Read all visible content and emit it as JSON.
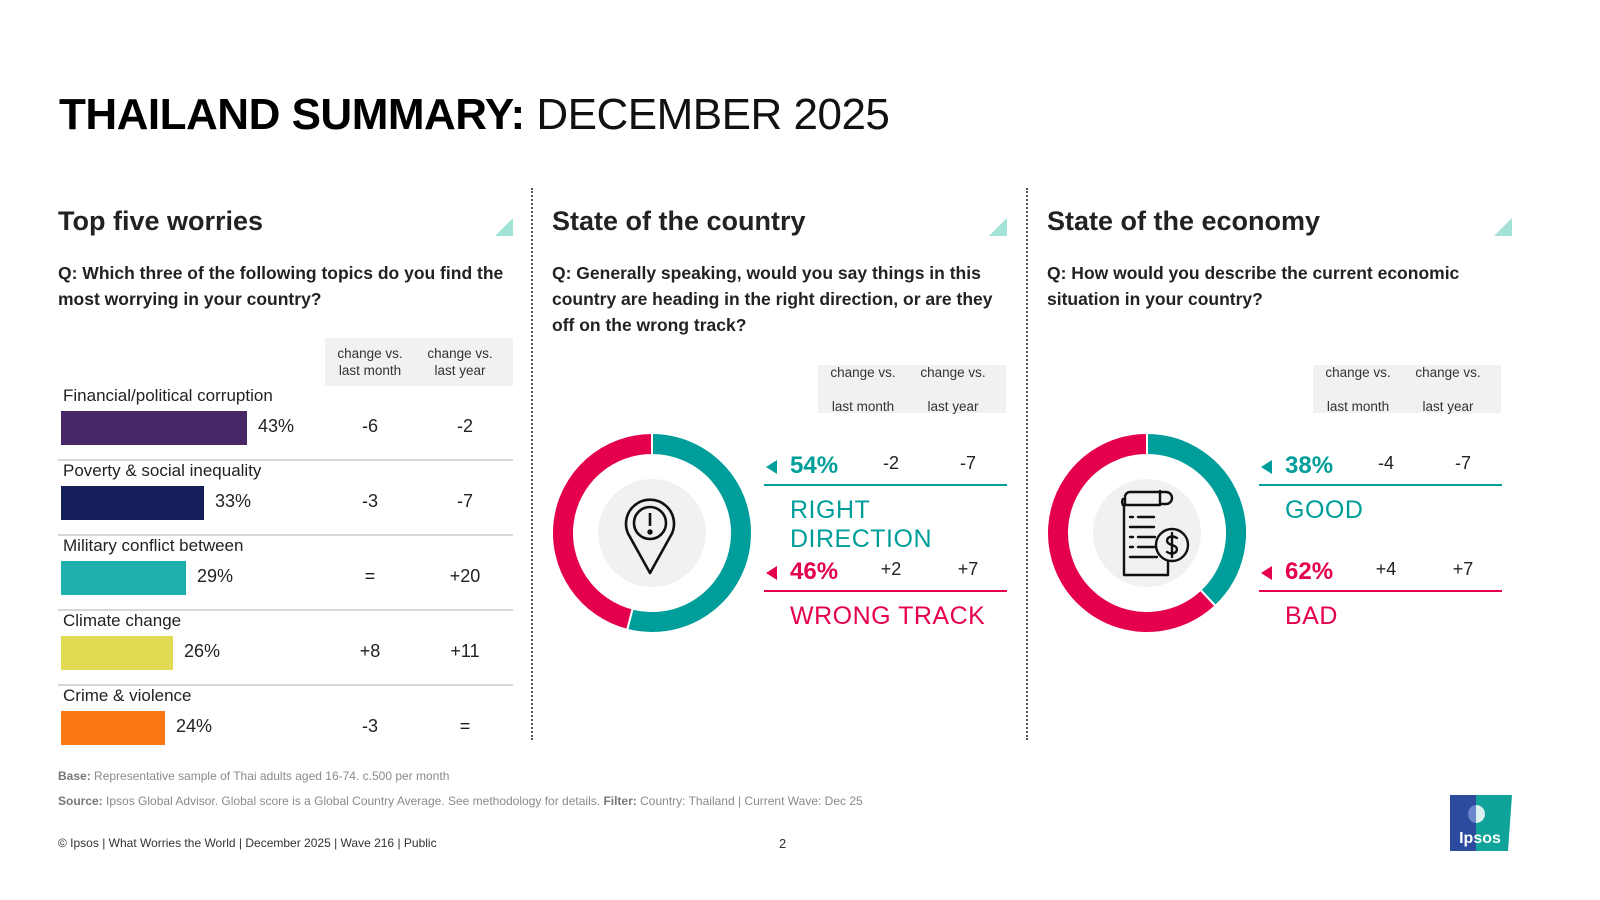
{
  "title": {
    "bold": "THAILAND SUMMARY:",
    "light": "DECEMBER 2025"
  },
  "colors": {
    "teal": "#009e9a",
    "magenta": "#e4004f",
    "tri": "#a2e3d6",
    "header_bg": "#f1f1f1"
  },
  "change_headers": {
    "month": [
      "change vs.",
      "last month"
    ],
    "year": [
      "change vs.",
      "last year"
    ]
  },
  "chart_data": [
    {
      "type": "bar",
      "title": "Top five worries",
      "question": "Q: Which three of the following topics do you find the most worrying in your country?",
      "categories": [
        "Financial/political corruption",
        "Poverty & social inequality",
        "Military conflict between nations",
        "Climate change",
        "Crime & violence"
      ],
      "category_labels_visible": [
        "Financial/political corruption",
        "Poverty & social inequality",
        "Military conflict between",
        "Climate change",
        "Crime & violence"
      ],
      "values": [
        43,
        33,
        29,
        26,
        24
      ],
      "value_labels": [
        "43%",
        "33%",
        "29%",
        "26%",
        "24%"
      ],
      "change_vs_last_month": [
        "-6",
        "-3",
        "=",
        "+8",
        "-3"
      ],
      "change_vs_last_year": [
        "-2",
        "-7",
        "+20",
        "+11",
        "="
      ],
      "bar_colors": [
        "#472765",
        "#141e58",
        "#1fb0ae",
        "#e1da53",
        "#fb7716"
      ],
      "xlim": [
        0,
        43
      ]
    },
    {
      "type": "pie",
      "variant": "donut",
      "title": "State of the country",
      "question": "Q: Generally speaking, would you say things in this country are heading in the right direction, or are they off on the wrong track?",
      "icon": "location-alert-icon",
      "slices": [
        {
          "label": "RIGHT DIRECTION",
          "value": 54,
          "value_label": "54%",
          "change_month": "-2",
          "change_year": "-7",
          "color": "#009e9a"
        },
        {
          "label": "WRONG TRACK",
          "value": 46,
          "value_label": "46%",
          "change_month": "+2",
          "change_year": "+7",
          "color": "#e4004f"
        }
      ]
    },
    {
      "type": "pie",
      "variant": "donut",
      "title": "State of the economy",
      "question": "Q: How would you describe the current economic situation in your country?",
      "icon": "invoice-dollar-icon",
      "slices": [
        {
          "label": "GOOD",
          "value": 38,
          "value_label": "38%",
          "change_month": "-4",
          "change_year": "-7",
          "color": "#009e9a"
        },
        {
          "label": "BAD",
          "value": 62,
          "value_label": "62%",
          "change_month": "+4",
          "change_year": "+7",
          "color": "#e4004f"
        }
      ]
    }
  ],
  "notes": {
    "base_label": "Base:",
    "base_text": "Representative sample of Thai adults aged 16-74. c.500 per month",
    "source_label": "Source:",
    "source_text": "Ipsos Global Advisor. Global score is a Global Country Average. See methodology for details.",
    "filter_label": "Filter:",
    "filter_text": "Country: Thailand | Current Wave: Dec 25"
  },
  "footer": {
    "text": "© Ipsos | What Worries the World | December 2025 | Wave 216 | Public",
    "page": "2"
  },
  "logo": {
    "text": "Ipsos"
  }
}
